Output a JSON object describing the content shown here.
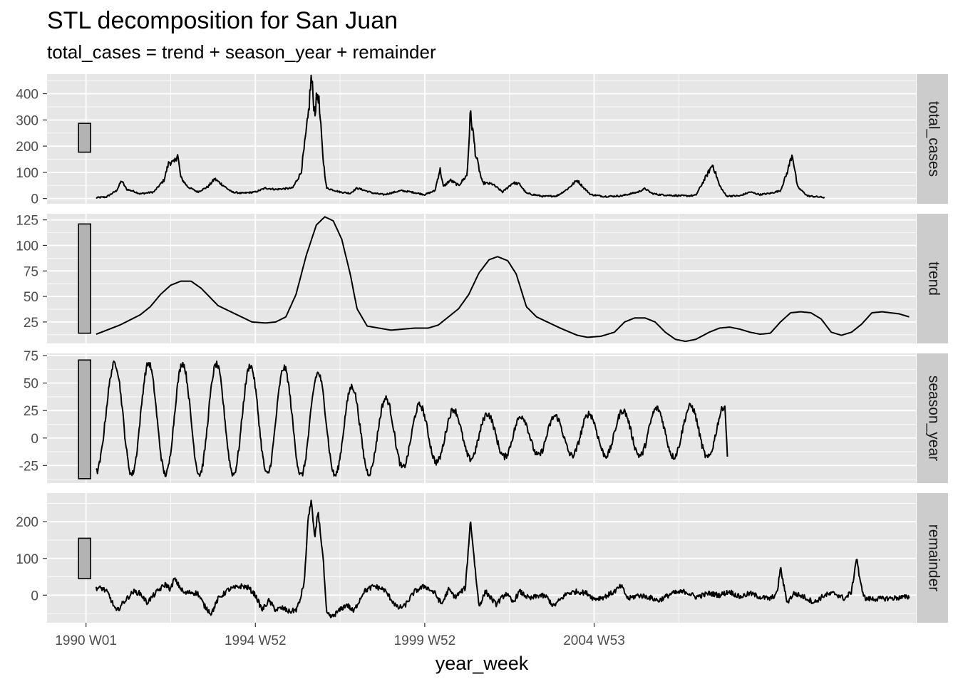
{
  "chart_data": {
    "type": "line",
    "title": "STL decomposition for San Juan",
    "subtitle": "total_cases = trend + season_year + remainder",
    "xlabel": "year_week",
    "x_ticks": [
      "1990 W01",
      "1994 W52",
      "1999 W52",
      "2004 W53"
    ],
    "x_tick_years": [
      1990.0,
      1995.0,
      2000.0,
      2005.0
    ],
    "x_range": [
      1988.85,
      2014.5
    ],
    "x_start": 1990.3,
    "x_end": 2008.3,
    "grid": true,
    "legend": "none",
    "colors": {
      "panel": "#e6e6e6",
      "grid": "#ffffff",
      "strip": "#cccccc",
      "line": "#000000",
      "scale_bar": "#b3b3b3"
    },
    "panels": [
      {
        "name": "total_cases",
        "ylim": [
          -20,
          475
        ],
        "ticks": [
          0,
          100,
          200,
          300,
          400
        ],
        "scale_bar": [
          177,
          287
        ],
        "keypoints": [
          [
            1990.3,
            3
          ],
          [
            1990.6,
            6
          ],
          [
            1990.9,
            30
          ],
          [
            1991.05,
            68
          ],
          [
            1991.2,
            35
          ],
          [
            1991.4,
            28
          ],
          [
            1991.6,
            18
          ],
          [
            1992.0,
            25
          ],
          [
            1992.3,
            70
          ],
          [
            1992.45,
            140
          ],
          [
            1992.6,
            135
          ],
          [
            1992.7,
            170
          ],
          [
            1992.8,
            80
          ],
          [
            1993.0,
            45
          ],
          [
            1993.3,
            25
          ],
          [
            1993.6,
            45
          ],
          [
            1993.8,
            75
          ],
          [
            1994.0,
            55
          ],
          [
            1994.3,
            25
          ],
          [
            1994.6,
            20
          ],
          [
            1995.0,
            25
          ],
          [
            1995.3,
            40
          ],
          [
            1995.6,
            35
          ],
          [
            1996.1,
            40
          ],
          [
            1996.35,
            100
          ],
          [
            1996.55,
            300
          ],
          [
            1996.65,
            463
          ],
          [
            1996.75,
            330
          ],
          [
            1996.85,
            410
          ],
          [
            1997.0,
            150
          ],
          [
            1997.1,
            40
          ],
          [
            1997.5,
            25
          ],
          [
            1997.8,
            20
          ],
          [
            1998.0,
            40
          ],
          [
            1998.5,
            20
          ],
          [
            1998.8,
            15
          ],
          [
            1999.3,
            30
          ],
          [
            1999.6,
            25
          ],
          [
            2000.0,
            15
          ],
          [
            2000.3,
            30
          ],
          [
            2000.45,
            113
          ],
          [
            2000.55,
            45
          ],
          [
            2000.75,
            70
          ],
          [
            2001.0,
            50
          ],
          [
            2001.25,
            90
          ],
          [
            2001.35,
            330
          ],
          [
            2001.5,
            170
          ],
          [
            2001.7,
            60
          ],
          [
            2002.0,
            55
          ],
          [
            2002.3,
            25
          ],
          [
            2002.6,
            60
          ],
          [
            2002.8,
            55
          ],
          [
            2003.0,
            20
          ],
          [
            2003.5,
            8
          ],
          [
            2003.9,
            10
          ],
          [
            2004.2,
            35
          ],
          [
            2004.5,
            70
          ],
          [
            2004.7,
            40
          ],
          [
            2004.9,
            15
          ],
          [
            2005.3,
            8
          ],
          [
            2005.8,
            10
          ],
          [
            2006.3,
            25
          ],
          [
            2006.5,
            38
          ],
          [
            2006.7,
            20
          ],
          [
            2006.9,
            15
          ],
          [
            2007.3,
            12
          ],
          [
            2007.7,
            10
          ],
          [
            2008.0,
            12
          ],
          [
            2008.5,
            130
          ],
          [
            2008.7,
            50
          ],
          [
            2008.9,
            10
          ],
          [
            2009.3,
            10
          ],
          [
            2009.6,
            25
          ],
          [
            2009.9,
            15
          ],
          [
            2010.2,
            20
          ],
          [
            2010.5,
            30
          ],
          [
            2010.7,
            100
          ],
          [
            2010.85,
            172
          ],
          [
            2011.0,
            45
          ],
          [
            2011.3,
            10
          ],
          [
            2011.8,
            4
          ]
        ]
      },
      {
        "name": "trend",
        "ylim": [
          4,
          131
        ],
        "ticks": [
          25,
          50,
          75,
          100,
          125
        ],
        "scale_bar": [
          14,
          121
        ],
        "keypoints": [
          [
            1990.3,
            13
          ],
          [
            1991.0,
            22
          ],
          [
            1991.6,
            32
          ],
          [
            1991.9,
            40
          ],
          [
            1992.2,
            52
          ],
          [
            1992.5,
            61
          ],
          [
            1992.8,
            65
          ],
          [
            1993.1,
            65
          ],
          [
            1993.4,
            58
          ],
          [
            1993.9,
            41
          ],
          [
            1994.4,
            33
          ],
          [
            1994.9,
            25
          ],
          [
            1995.3,
            24
          ],
          [
            1995.6,
            25
          ],
          [
            1995.9,
            30
          ],
          [
            1996.2,
            52
          ],
          [
            1996.5,
            90
          ],
          [
            1996.8,
            120
          ],
          [
            1997.05,
            128
          ],
          [
            1997.3,
            124
          ],
          [
            1997.55,
            106
          ],
          [
            1997.8,
            72
          ],
          [
            1998.0,
            38
          ],
          [
            1998.3,
            21
          ],
          [
            1999.0,
            17
          ],
          [
            1999.7,
            19
          ],
          [
            2000.1,
            19
          ],
          [
            2000.4,
            22
          ],
          [
            2001.0,
            38
          ],
          [
            2001.3,
            52
          ],
          [
            2001.6,
            73
          ],
          [
            2001.9,
            86
          ],
          [
            2002.15,
            89
          ],
          [
            2002.45,
            85
          ],
          [
            2002.7,
            72
          ],
          [
            2003.0,
            40
          ],
          [
            2003.3,
            30
          ],
          [
            2004.0,
            19
          ],
          [
            2004.5,
            12
          ],
          [
            2004.8,
            10
          ],
          [
            2005.2,
            11
          ],
          [
            2005.6,
            15
          ],
          [
            2005.9,
            25
          ],
          [
            2006.2,
            29
          ],
          [
            2006.5,
            29
          ],
          [
            2006.8,
            25
          ],
          [
            2007.1,
            15
          ],
          [
            2007.4,
            8
          ],
          [
            2007.7,
            6
          ],
          [
            2008.0,
            8
          ],
          [
            2008.4,
            15
          ],
          [
            2008.7,
            19
          ],
          [
            2009.0,
            20
          ],
          [
            2009.3,
            18
          ],
          [
            2009.6,
            15
          ],
          [
            2009.9,
            13
          ],
          [
            2010.2,
            14
          ],
          [
            2010.5,
            25
          ],
          [
            2010.8,
            34
          ],
          [
            2011.1,
            35
          ],
          [
            2011.4,
            34
          ],
          [
            2011.7,
            28
          ],
          [
            2012.0,
            15
          ],
          [
            2012.3,
            12
          ],
          [
            2012.6,
            15
          ],
          [
            2012.9,
            23
          ],
          [
            2013.2,
            34
          ],
          [
            2013.5,
            35
          ],
          [
            2014.0,
            33
          ],
          [
            2014.3,
            30
          ]
        ]
      },
      {
        "name": "season_year",
        "ylim": [
          -41,
          77
        ],
        "ticks": [
          -25,
          0,
          25,
          50,
          75
        ],
        "scale_bar": [
          -37,
          71
        ],
        "peaks": [
          [
            1990.85,
            68
          ],
          [
            1991.85,
            68
          ],
          [
            1992.85,
            68
          ],
          [
            1993.85,
            67
          ],
          [
            1994.85,
            66
          ],
          [
            1995.85,
            64
          ],
          [
            1996.85,
            59
          ],
          [
            1997.85,
            47
          ],
          [
            1998.85,
            36
          ],
          [
            1999.85,
            30
          ],
          [
            2000.85,
            26
          ],
          [
            2001.85,
            22
          ],
          [
            2002.85,
            20
          ],
          [
            2003.85,
            20
          ],
          [
            2004.85,
            22
          ],
          [
            2005.85,
            25
          ],
          [
            2006.85,
            27
          ],
          [
            2007.85,
            29
          ],
          [
            2008.85,
            29
          ]
        ],
        "troughs": [
          [
            1990.3,
            -31
          ],
          [
            1991.35,
            -33
          ],
          [
            1992.35,
            -33
          ],
          [
            1993.35,
            -33
          ],
          [
            1994.35,
            -33
          ],
          [
            1995.35,
            -33
          ],
          [
            1996.35,
            -34
          ],
          [
            1997.35,
            -34
          ],
          [
            1998.35,
            -32
          ],
          [
            1999.35,
            -27
          ],
          [
            2000.35,
            -22
          ],
          [
            2001.35,
            -19
          ],
          [
            2002.35,
            -17
          ],
          [
            2003.35,
            -16
          ],
          [
            2004.35,
            -16
          ],
          [
            2005.35,
            -16
          ],
          [
            2006.35,
            -16
          ],
          [
            2007.35,
            -17
          ],
          [
            2008.35,
            -18
          ],
          [
            2008.95,
            -19
          ]
        ]
      },
      {
        "name": "remainder",
        "ylim": [
          -75,
          278
        ],
        "ticks": [
          0,
          100,
          200
        ],
        "scale_bar": [
          45,
          155
        ],
        "keypoints": [
          [
            1990.3,
            20
          ],
          [
            1990.5,
            18
          ],
          [
            1990.65,
            5
          ],
          [
            1990.9,
            -45
          ],
          [
            1991.1,
            -20
          ],
          [
            1991.4,
            10
          ],
          [
            1991.6,
            5
          ],
          [
            1991.8,
            -20
          ],
          [
            1992.1,
            10
          ],
          [
            1992.35,
            30
          ],
          [
            1992.5,
            15
          ],
          [
            1992.6,
            45
          ],
          [
            1992.75,
            25
          ],
          [
            1992.9,
            5
          ],
          [
            1993.1,
            8
          ],
          [
            1993.3,
            5
          ],
          [
            1993.5,
            -30
          ],
          [
            1993.7,
            -50
          ],
          [
            1993.9,
            -10
          ],
          [
            1994.2,
            15
          ],
          [
            1994.4,
            20
          ],
          [
            1994.6,
            25
          ],
          [
            1994.8,
            20
          ],
          [
            1995.0,
            0
          ],
          [
            1995.2,
            -40
          ],
          [
            1995.4,
            -15
          ],
          [
            1995.6,
            -40
          ],
          [
            1995.8,
            -35
          ],
          [
            1996.0,
            -45
          ],
          [
            1996.2,
            -40
          ],
          [
            1996.3,
            -20
          ],
          [
            1996.45,
            40
          ],
          [
            1996.55,
            200
          ],
          [
            1996.65,
            262
          ],
          [
            1996.75,
            150
          ],
          [
            1996.85,
            230
          ],
          [
            1997.0,
            100
          ],
          [
            1997.1,
            -50
          ],
          [
            1997.25,
            -60
          ],
          [
            1997.5,
            -40
          ],
          [
            1997.7,
            -25
          ],
          [
            1997.9,
            -45
          ],
          [
            1998.2,
            10
          ],
          [
            1998.5,
            25
          ],
          [
            1998.8,
            15
          ],
          [
            1999.2,
            -35
          ],
          [
            1999.4,
            -30
          ],
          [
            1999.7,
            10
          ],
          [
            2000.0,
            25
          ],
          [
            2000.3,
            5
          ],
          [
            2000.5,
            -25
          ],
          [
            2000.7,
            15
          ],
          [
            2000.9,
            -5
          ],
          [
            2001.2,
            20
          ],
          [
            2001.35,
            205
          ],
          [
            2001.5,
            60
          ],
          [
            2001.6,
            -30
          ],
          [
            2001.8,
            10
          ],
          [
            2002.1,
            -25
          ],
          [
            2002.4,
            5
          ],
          [
            2002.6,
            -20
          ],
          [
            2002.8,
            10
          ],
          [
            2003.1,
            -10
          ],
          [
            2003.4,
            0
          ],
          [
            2003.6,
            -5
          ],
          [
            2003.8,
            -30
          ],
          [
            2004.2,
            5
          ],
          [
            2004.5,
            10
          ],
          [
            2004.8,
            5
          ],
          [
            2005.0,
            -10
          ],
          [
            2005.3,
            -5
          ],
          [
            2005.6,
            10
          ],
          [
            2005.8,
            25
          ],
          [
            2006.0,
            -10
          ],
          [
            2006.3,
            0
          ],
          [
            2006.6,
            -5
          ],
          [
            2006.9,
            -15
          ],
          [
            2007.3,
            5
          ],
          [
            2007.7,
            10
          ],
          [
            2008.0,
            -5
          ],
          [
            2008.4,
            5
          ],
          [
            2008.7,
            0
          ],
          [
            2009.0,
            10
          ],
          [
            2009.3,
            -5
          ],
          [
            2009.6,
            5
          ],
          [
            2009.9,
            -5
          ],
          [
            2010.2,
            -10
          ],
          [
            2010.4,
            5
          ],
          [
            2010.5,
            75
          ],
          [
            2010.6,
            25
          ],
          [
            2010.7,
            -20
          ],
          [
            2010.9,
            5
          ],
          [
            2011.2,
            -5
          ],
          [
            2011.5,
            -20
          ],
          [
            2011.8,
            0
          ],
          [
            2012.1,
            5
          ],
          [
            2012.4,
            -10
          ],
          [
            2012.6,
            10
          ],
          [
            2012.75,
            105
          ],
          [
            2012.85,
            35
          ],
          [
            2013.0,
            -10
          ],
          [
            2013.4,
            -10
          ],
          [
            2013.8,
            -8
          ],
          [
            2014.3,
            -5
          ]
        ]
      }
    ]
  }
}
